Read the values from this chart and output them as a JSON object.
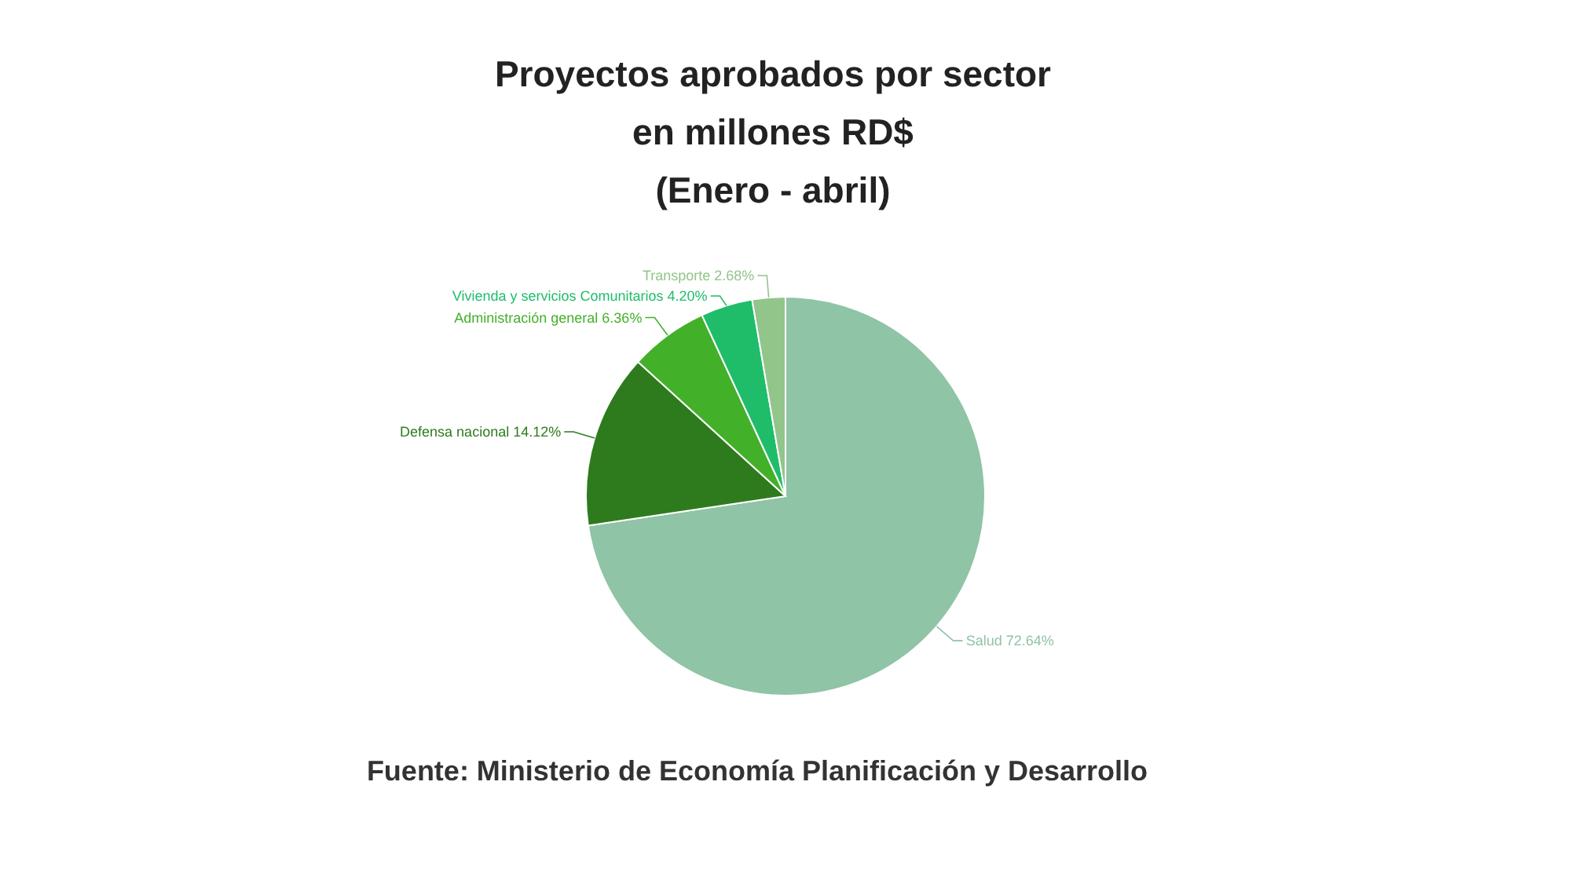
{
  "chart_data": {
    "type": "pie",
    "title": "Proyectos aprobados por sector\nen millones RD$\n(Enero - abril)",
    "categories": [
      "Salud",
      "Defensa nacional",
      "Administración general",
      "Vivienda y servicios Comunitarios",
      "Transporte"
    ],
    "values": [
      72.64,
      14.12,
      6.36,
      4.2,
      2.68
    ],
    "colors": [
      "#8fc4a6",
      "#2e7b1e",
      "#43b02a",
      "#1fbd6a",
      "#92c58a"
    ],
    "value_labels": [
      "72.64%",
      "14.12%",
      "6.36%",
      "4.20%",
      "2.68%"
    ],
    "annotations": [
      "Fuente: Ministerio de Economía Planificación y Desarrollo"
    ]
  }
}
